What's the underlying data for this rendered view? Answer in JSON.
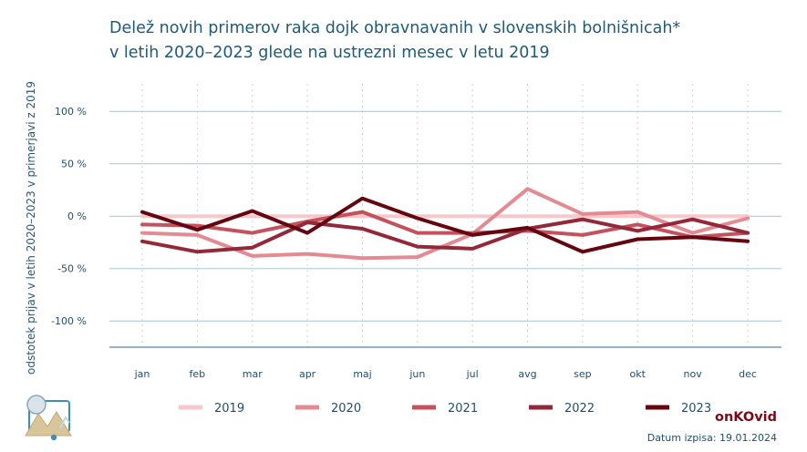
{
  "chart_data": {
    "type": "line",
    "title_lines": [
      "Delež novih primerov raka dojk obravnavanih v slovenskih bolnišnicah*",
      "v letih 2020–2023 glede na ustrezni mesec v letu 2019"
    ],
    "ylabel": "odstotek prijav v letih 2020–2023 v primerjavi z 2019",
    "categories": [
      "jan",
      "feb",
      "mar",
      "apr",
      "maj",
      "jun",
      "jul",
      "avg",
      "sep",
      "okt",
      "nov",
      "dec"
    ],
    "yticks": [
      {
        "value": 100,
        "label": "100 %"
      },
      {
        "value": 50,
        "label": "50 %"
      },
      {
        "value": 0,
        "label": "0 %"
      },
      {
        "value": -50,
        "label": "-50 %"
      },
      {
        "value": -100,
        "label": "-100 %"
      }
    ],
    "ylim": [
      -125,
      128
    ],
    "grid": true,
    "legend_position": "bottom",
    "series": [
      {
        "name": "2019",
        "color": "#f7c7cb",
        "values": [
          0,
          0,
          0,
          0,
          0,
          0,
          0,
          0,
          0,
          0,
          0,
          0
        ]
      },
      {
        "name": "2020",
        "color": "#e38a92",
        "values": [
          -16,
          -18,
          -38,
          -36,
          -40,
          -39,
          -17,
          26,
          2,
          4,
          -16,
          -2
        ]
      },
      {
        "name": "2021",
        "color": "#c4515c",
        "values": [
          -8,
          -9,
          -16,
          -5,
          4,
          -16,
          -16,
          -14,
          -18,
          -8,
          -20,
          -16
        ]
      },
      {
        "name": "2022",
        "color": "#922838",
        "values": [
          -24,
          -34,
          -30,
          -6,
          -12,
          -29,
          -31,
          -12,
          -3,
          -14,
          -3,
          -16
        ]
      },
      {
        "name": "2023",
        "color": "#640510",
        "values": [
          4,
          -13,
          5,
          -16,
          17,
          -2,
          -18,
          -11,
          -34,
          -22,
          -20,
          -24
        ]
      }
    ]
  },
  "footer": {
    "brand": "onKOvid",
    "date": "Datum izpisa: 19.01.2024"
  }
}
